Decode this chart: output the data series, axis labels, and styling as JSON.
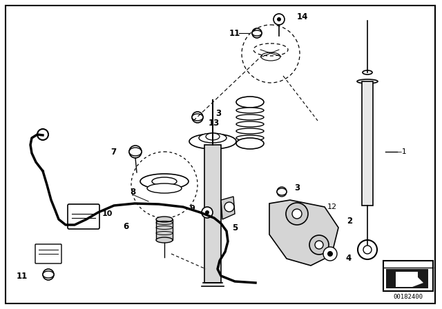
{
  "bg_color": "#ffffff",
  "border_color": "#000000",
  "diagram_id": "00182400",
  "line_color": "#000000",
  "text_color": "#000000",
  "fig_w": 6.4,
  "fig_h": 4.48,
  "dpi": 100
}
